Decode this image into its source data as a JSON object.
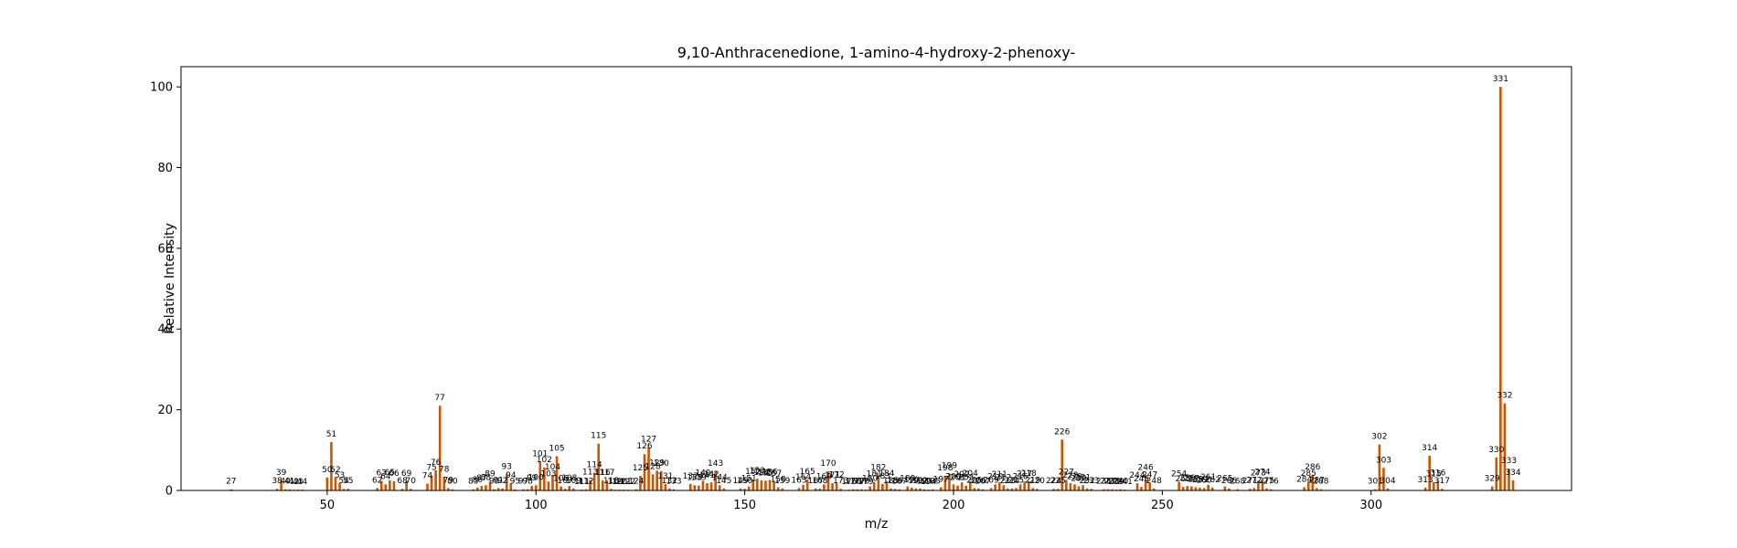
{
  "chart_data": {
    "type": "bar",
    "title": "9,10-Anthracenedione, 1-amino-4-hydroxy-2-phenoxy-",
    "xlabel": "m/z",
    "ylabel": "Relative Intensity",
    "xlim": [
      15,
      348
    ],
    "ylim": [
      0,
      105
    ],
    "xticks": [
      50,
      100,
      150,
      200,
      250,
      300
    ],
    "yticks": [
      0,
      20,
      40,
      60,
      80,
      100
    ],
    "grid": false,
    "legend": "none",
    "bar_color": "#cc5500",
    "peaks": [
      [
        27,
        0.3
      ],
      [
        38,
        0.4
      ],
      [
        39,
        2.5
      ],
      [
        40,
        0.3
      ],
      [
        41,
        0.3
      ],
      [
        42,
        0.2
      ],
      [
        43,
        0.2
      ],
      [
        44,
        0.2
      ],
      [
        50,
        3.2
      ],
      [
        51,
        12.0
      ],
      [
        52,
        3.2
      ],
      [
        53,
        1.8
      ],
      [
        54,
        0.4
      ],
      [
        55,
        0.4
      ],
      [
        62,
        0.6
      ],
      [
        63,
        2.4
      ],
      [
        64,
        1.5
      ],
      [
        65,
        2.5
      ],
      [
        66,
        2.3
      ],
      [
        68,
        0.4
      ],
      [
        69,
        2.3
      ],
      [
        70,
        0.4
      ],
      [
        74,
        1.7
      ],
      [
        75,
        3.7
      ],
      [
        76,
        5.0
      ],
      [
        77,
        21.0
      ],
      [
        78,
        3.3
      ],
      [
        79,
        0.6
      ],
      [
        80,
        0.3
      ],
      [
        85,
        0.3
      ],
      [
        86,
        0.7
      ],
      [
        87,
        1.1
      ],
      [
        88,
        1.3
      ],
      [
        89,
        2.2
      ],
      [
        90,
        0.3
      ],
      [
        91,
        0.6
      ],
      [
        92,
        0.5
      ],
      [
        93,
        4.0
      ],
      [
        94,
        1.8
      ],
      [
        95,
        0.3
      ],
      [
        97,
        0.3
      ],
      [
        98,
        0.3
      ],
      [
        99,
        1.1
      ],
      [
        100,
        1.3
      ],
      [
        101,
        7.1
      ],
      [
        102,
        5.7
      ],
      [
        103,
        2.2
      ],
      [
        104,
        3.9
      ],
      [
        105,
        8.5
      ],
      [
        106,
        1.0
      ],
      [
        107,
        0.4
      ],
      [
        108,
        1.1
      ],
      [
        109,
        0.5
      ],
      [
        111,
        0.2
      ],
      [
        112,
        0.3
      ],
      [
        113,
        2.6
      ],
      [
        114,
        4.4
      ],
      [
        115,
        11.6
      ],
      [
        116,
        2.5
      ],
      [
        117,
        2.5
      ],
      [
        118,
        0.4
      ],
      [
        119,
        0.2
      ],
      [
        120,
        0.2
      ],
      [
        121,
        0.2
      ],
      [
        122,
        0.2
      ],
      [
        124,
        0.3
      ],
      [
        125,
        3.6
      ],
      [
        126,
        9.0
      ],
      [
        127,
        10.7
      ],
      [
        128,
        4.0
      ],
      [
        129,
        4.9
      ],
      [
        130,
        4.8
      ],
      [
        131,
        1.6
      ],
      [
        132,
        0.5
      ],
      [
        133,
        0.3
      ],
      [
        137,
        1.6
      ],
      [
        138,
        1.3
      ],
      [
        139,
        1.2
      ],
      [
        140,
        2.4
      ],
      [
        141,
        1.8
      ],
      [
        142,
        2.0
      ],
      [
        143,
        4.8
      ],
      [
        144,
        1.3
      ],
      [
        145,
        0.5
      ],
      [
        149,
        0.5
      ],
      [
        150,
        0.4
      ],
      [
        151,
        1.0
      ],
      [
        152,
        2.7
      ],
      [
        153,
        2.9
      ],
      [
        154,
        2.5
      ],
      [
        155,
        2.4
      ],
      [
        156,
        2.6
      ],
      [
        157,
        2.3
      ],
      [
        158,
        0.8
      ],
      [
        159,
        0.5
      ],
      [
        163,
        0.6
      ],
      [
        164,
        1.4
      ],
      [
        165,
        2.7
      ],
      [
        167,
        0.5
      ],
      [
        168,
        0.5
      ],
      [
        169,
        1.5
      ],
      [
        170,
        4.7
      ],
      [
        171,
        1.8
      ],
      [
        172,
        1.9
      ],
      [
        173,
        0.4
      ],
      [
        175,
        0.2
      ],
      [
        176,
        0.3
      ],
      [
        177,
        0.3
      ],
      [
        178,
        0.3
      ],
      [
        179,
        0.2
      ],
      [
        180,
        1.0
      ],
      [
        181,
        2.1
      ],
      [
        182,
        3.7
      ],
      [
        183,
        1.6
      ],
      [
        184,
        2.3
      ],
      [
        185,
        0.5
      ],
      [
        186,
        0.4
      ],
      [
        187,
        0.3
      ],
      [
        189,
        1.0
      ],
      [
        190,
        0.7
      ],
      [
        191,
        0.5
      ],
      [
        192,
        0.5
      ],
      [
        193,
        0.3
      ],
      [
        194,
        0.2
      ],
      [
        195,
        0.3
      ],
      [
        197,
        0.8
      ],
      [
        198,
        3.6
      ],
      [
        199,
        4.2
      ],
      [
        200,
        1.5
      ],
      [
        201,
        1.2
      ],
      [
        202,
        2.0
      ],
      [
        203,
        1.2
      ],
      [
        204,
        2.3
      ],
      [
        205,
        0.6
      ],
      [
        206,
        0.5
      ],
      [
        207,
        0.3
      ],
      [
        209,
        0.6
      ],
      [
        210,
        1.5
      ],
      [
        211,
        2.0
      ],
      [
        212,
        1.3
      ],
      [
        213,
        0.5
      ],
      [
        214,
        0.5
      ],
      [
        215,
        0.6
      ],
      [
        216,
        1.5
      ],
      [
        217,
        2.2
      ],
      [
        218,
        2.3
      ],
      [
        219,
        0.6
      ],
      [
        220,
        0.4
      ],
      [
        224,
        0.4
      ],
      [
        225,
        0.4
      ],
      [
        226,
        12.6
      ],
      [
        227,
        2.6
      ],
      [
        228,
        1.8
      ],
      [
        229,
        1.5
      ],
      [
        230,
        1.0
      ],
      [
        231,
        1.3
      ],
      [
        232,
        0.5
      ],
      [
        233,
        0.4
      ],
      [
        236,
        0.3
      ],
      [
        237,
        0.3
      ],
      [
        238,
        0.3
      ],
      [
        239,
        0.2
      ],
      [
        240,
        0.3
      ],
      [
        241,
        0.2
      ],
      [
        244,
        1.8
      ],
      [
        245,
        0.9
      ],
      [
        246,
        3.7
      ],
      [
        247,
        1.9
      ],
      [
        248,
        0.5
      ],
      [
        254,
        2.1
      ],
      [
        255,
        0.9
      ],
      [
        256,
        1.1
      ],
      [
        257,
        1.0
      ],
      [
        258,
        0.8
      ],
      [
        259,
        0.7
      ],
      [
        260,
        0.6
      ],
      [
        261,
        1.4
      ],
      [
        262,
        0.7
      ],
      [
        265,
        1.0
      ],
      [
        266,
        0.5
      ],
      [
        268,
        0.3
      ],
      [
        271,
        0.4
      ],
      [
        272,
        0.6
      ],
      [
        273,
        2.4
      ],
      [
        274,
        2.6
      ],
      [
        275,
        0.5
      ],
      [
        276,
        0.3
      ],
      [
        284,
        0.8
      ],
      [
        285,
        2.3
      ],
      [
        286,
        3.9
      ],
      [
        287,
        0.6
      ],
      [
        288,
        0.3
      ],
      [
        301,
        0.3
      ],
      [
        302,
        11.4
      ],
      [
        303,
        5.6
      ],
      [
        304,
        0.5
      ],
      [
        313,
        0.7
      ],
      [
        314,
        8.6
      ],
      [
        315,
        2.1
      ],
      [
        316,
        2.4
      ],
      [
        317,
        0.4
      ],
      [
        329,
        1.0
      ],
      [
        330,
        8.2
      ],
      [
        331,
        100.0
      ],
      [
        332,
        21.6
      ],
      [
        333,
        5.4
      ],
      [
        334,
        2.5
      ]
    ]
  }
}
